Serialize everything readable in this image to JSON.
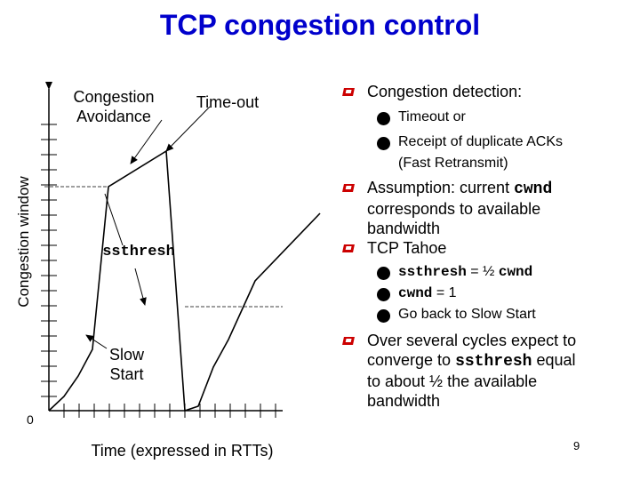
{
  "title": "TCP congestion control",
  "figure": {
    "y_axis_label": "Congestion window",
    "x_axis_label": "Time (expressed in RTTs)",
    "origin_label": "0",
    "labels": {
      "congestion_avoidance": [
        "Congestion",
        "Avoidance"
      ],
      "timeout": "Time-out",
      "ssthresh": "ssthresh",
      "slow_start": [
        "Slow",
        "Start"
      ]
    }
  },
  "bullets": [
    {
      "text": "Congestion detection:",
      "subs": [
        [
          "Timeout or"
        ],
        [
          "Receipt of duplicate ACKs",
          "(Fast Retransmit)"
        ]
      ]
    },
    {
      "lines": [
        [
          {
            "t": "Assumption: current "
          },
          {
            "t": "cwnd",
            "code": true
          }
        ],
        [
          {
            "t": "corresponds to available"
          }
        ],
        [
          {
            "t": "bandwidth"
          }
        ]
      ]
    },
    {
      "text": "TCP Tahoe",
      "subs_rich": [
        [
          {
            "t": "ssthresh",
            "code": true
          },
          {
            "t": " = ½ "
          },
          {
            "t": "cwnd",
            "code": true
          }
        ],
        [
          {
            "t": "cwnd",
            "code": true
          },
          {
            "t": " = 1"
          }
        ],
        [
          {
            "t": "Go back to Slow Start"
          }
        ]
      ]
    },
    {
      "lines": [
        [
          {
            "t": "Over several cycles expect to"
          }
        ],
        [
          {
            "t": "converge to "
          },
          {
            "t": "ssthresh",
            "code": true
          },
          {
            "t": " equal"
          }
        ],
        [
          {
            "t": "to about ½ the available"
          }
        ],
        [
          {
            "t": "bandwidth"
          }
        ]
      ]
    }
  ],
  "page_number": "9",
  "colors": {
    "title": "#0000cc",
    "bullet_marker": "#cc0000"
  },
  "icons": {
    "bullet_marker": "red-square-bullet-icon",
    "sub_bullet": "black-dot-icon"
  }
}
